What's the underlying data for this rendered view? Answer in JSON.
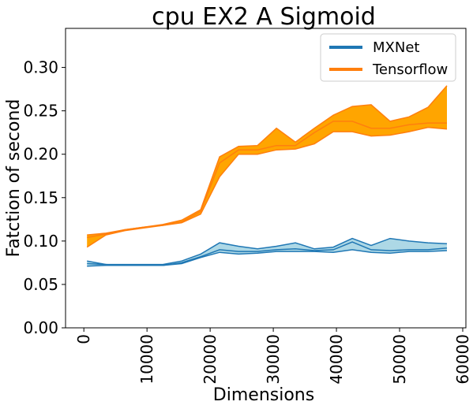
{
  "chart_data": {
    "type": "area",
    "title": "cpu EX2 A Sigmoid",
    "xlabel": "Dimensions",
    "ylabel": "Fatction of second",
    "xlim": [
      -2900,
      60500
    ],
    "ylim": [
      0,
      0.345
    ],
    "x_ticks": [
      0,
      10000,
      20000,
      30000,
      40000,
      50000,
      60000
    ],
    "x_tick_labels": [
      "0",
      "10000",
      "20000",
      "30000",
      "40000",
      "50000",
      "60000"
    ],
    "y_ticks": [
      0.0,
      0.05,
      0.1,
      0.15,
      0.2,
      0.25,
      0.3
    ],
    "y_tick_labels": [
      "0.00",
      "0.05",
      "0.10",
      "0.15",
      "0.20",
      "0.25",
      "0.30"
    ],
    "legend_position": "top-right",
    "grid": false,
    "x": [
      500,
      3500,
      6500,
      9500,
      12500,
      15500,
      18500,
      21500,
      24500,
      27500,
      30500,
      33500,
      36500,
      39500,
      42500,
      45500,
      48500,
      51500,
      54500,
      57500
    ],
    "series": [
      {
        "name": "MXNet",
        "color": "#1f77b4",
        "fill_color": "#add8e6",
        "lower": [
          0.071,
          0.072,
          0.072,
          0.072,
          0.072,
          0.074,
          0.081,
          0.087,
          0.085,
          0.086,
          0.088,
          0.088,
          0.088,
          0.087,
          0.09,
          0.087,
          0.086,
          0.088,
          0.088,
          0.089
        ],
        "upper": [
          0.077,
          0.073,
          0.073,
          0.073,
          0.073,
          0.077,
          0.085,
          0.098,
          0.094,
          0.091,
          0.094,
          0.098,
          0.091,
          0.093,
          0.103,
          0.095,
          0.103,
          0.1,
          0.098,
          0.097
        ],
        "mean": [
          0.074,
          0.073,
          0.072,
          0.072,
          0.072,
          0.075,
          0.082,
          0.09,
          0.088,
          0.088,
          0.09,
          0.091,
          0.089,
          0.09,
          0.099,
          0.09,
          0.089,
          0.09,
          0.09,
          0.092
        ]
      },
      {
        "name": "Tensorflow",
        "color": "#ff7f0e",
        "fill_color": "#ffa500",
        "lower": [
          0.093,
          0.107,
          0.112,
          0.115,
          0.118,
          0.121,
          0.131,
          0.174,
          0.2,
          0.2,
          0.205,
          0.206,
          0.212,
          0.226,
          0.226,
          0.221,
          0.222,
          0.226,
          0.231,
          0.229
        ],
        "upper": [
          0.107,
          0.109,
          0.113,
          0.116,
          0.119,
          0.124,
          0.136,
          0.197,
          0.209,
          0.21,
          0.23,
          0.214,
          0.23,
          0.245,
          0.255,
          0.257,
          0.238,
          0.243,
          0.254,
          0.279
        ],
        "mean": [
          0.104,
          0.108,
          0.113,
          0.116,
          0.118,
          0.122,
          0.134,
          0.19,
          0.205,
          0.205,
          0.21,
          0.21,
          0.225,
          0.238,
          0.238,
          0.23,
          0.23,
          0.234,
          0.236,
          0.236
        ]
      }
    ]
  }
}
